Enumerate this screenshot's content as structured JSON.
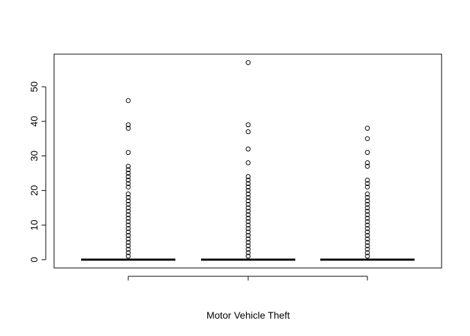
{
  "chart_data": {
    "type": "boxplot",
    "title": "",
    "xlabel": "Motor Vehicle Theft",
    "ylabel": "",
    "ylim": [
      -2.2,
      59.2
    ],
    "yticks": [
      "0",
      "10",
      "20",
      "30",
      "40",
      "50"
    ],
    "xtick_labels": [
      "",
      "",
      ""
    ],
    "grid": false,
    "series": [
      {
        "min": 0,
        "q1": 0,
        "median": 0,
        "q3": 0,
        "max": 0,
        "outliers": [
          1,
          2,
          3,
          4,
          5,
          6,
          7,
          8,
          9,
          10,
          11,
          12,
          13,
          14,
          15,
          16,
          17,
          18,
          19,
          21,
          22,
          23,
          24,
          25,
          26,
          27,
          31,
          38,
          39,
          46
        ]
      },
      {
        "min": 0,
        "q1": 0,
        "median": 0,
        "q3": 0,
        "max": 0,
        "outliers": [
          1,
          2,
          3,
          4,
          5,
          6,
          7,
          8,
          9,
          10,
          11,
          12,
          13,
          14,
          15,
          16,
          17,
          18,
          19,
          20,
          21,
          22,
          23,
          24,
          28,
          32,
          37,
          39,
          57
        ]
      },
      {
        "min": 0,
        "q1": 0,
        "median": 0,
        "q3": 0,
        "max": 0,
        "outliers": [
          1,
          2,
          3,
          4,
          5,
          6,
          7,
          8,
          9,
          10,
          11,
          12,
          13,
          14,
          15,
          16,
          17,
          18,
          19,
          21,
          22,
          23,
          27,
          28,
          31,
          35,
          38
        ]
      }
    ]
  }
}
